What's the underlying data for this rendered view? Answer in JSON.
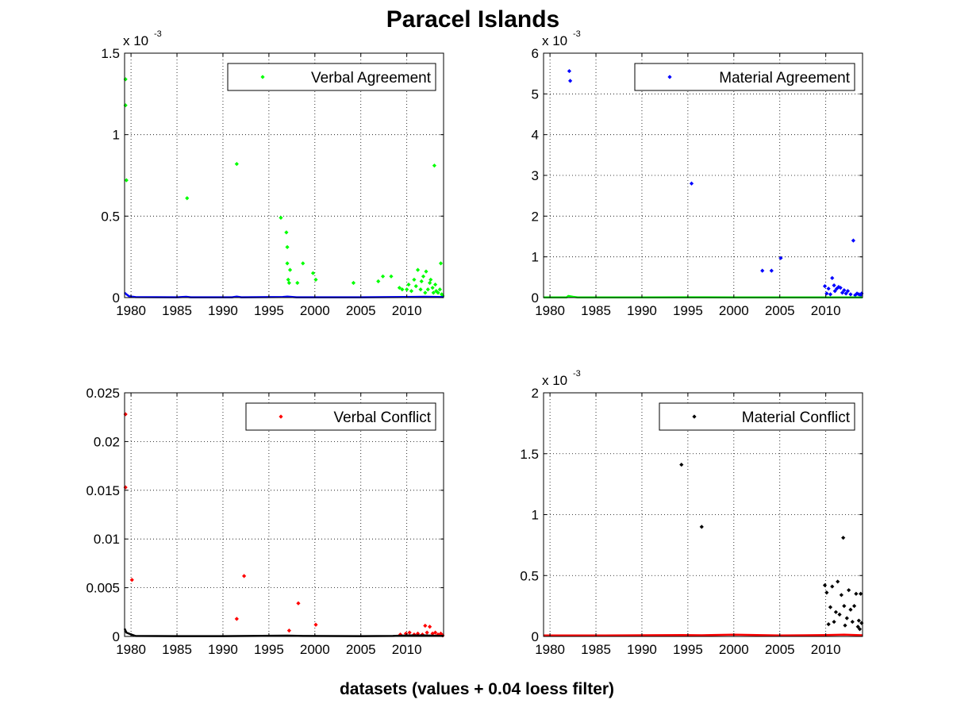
{
  "title": "Paracel Islands",
  "xlabel": "datasets (values + 0.04 loess filter)",
  "colors": {
    "verbal_agreement": "#00ff00",
    "material_agreement": "#0000ff",
    "verbal_conflict": "#ff0000",
    "material_conflict": "#000000"
  },
  "chart_data": [
    {
      "type": "scatter",
      "xlim": [
        1979.3,
        2014.0
      ],
      "ylim": [
        0,
        0.0015
      ],
      "xticks": [
        1980,
        1985,
        1990,
        1995,
        2000,
        2005,
        2010
      ],
      "xtick_labels": [
        "1980",
        "1985",
        "1990",
        "1995",
        "2000",
        "2005",
        "2010"
      ],
      "yticks": [
        0,
        0.0005,
        0.001,
        0.0015
      ],
      "ytick_labels": [
        "0",
        "0.5",
        "1",
        "1.5"
      ],
      "exponent_label": {
        "base": "x 10",
        "power": "-3"
      },
      "grid": true,
      "legend": {
        "position": "top-right",
        "entry": "Verbal Agreement"
      },
      "series": [
        {
          "name": "Verbal Agreement",
          "color": "#00ff00",
          "style": "points",
          "x": [
            1979.4,
            1979.4,
            1979.5,
            1986.1,
            1991.5,
            1996.3,
            1996.9,
            1997.0,
            1997.0,
            1997.1,
            1997.2,
            1997.3,
            1998.1,
            1998.7,
            1999.8,
            2000.1,
            2004.2,
            2006.9,
            2007.4,
            2008.3,
            2009.2,
            2009.5,
            2010.0,
            2010.2,
            2010.5,
            2010.8,
            2011.0,
            2011.2,
            2011.5,
            2011.6,
            2011.8,
            2012.0,
            2012.1,
            2012.3,
            2012.5,
            2012.6,
            2012.8,
            2012.9,
            2013.0,
            2013.1,
            2013.2,
            2013.4,
            2013.6,
            2013.7,
            2013.8,
            2013.9
          ],
          "y": [
            0.00134,
            0.00118,
            0.00072,
            0.00061,
            0.00082,
            0.00049,
            0.0004,
            0.00031,
            0.00021,
            0.00011,
            9e-05,
            0.00017,
            9e-05,
            0.00021,
            0.00015,
            0.00011,
            9e-05,
            0.0001,
            0.00013,
            0.00013,
            6e-05,
            5e-05,
            5e-05,
            8e-05,
            4e-05,
            0.00011,
            7e-05,
            0.00017,
            5e-05,
            0.0001,
            0.00013,
            3e-05,
            0.00016,
            5e-05,
            9e-05,
            0.00011,
            6e-05,
            3e-05,
            0.00081,
            8e-05,
            4e-05,
            3e-05,
            5e-05,
            0.00021,
            2e-05,
            1e-05
          ]
        },
        {
          "name": "",
          "color": "#0000ff",
          "style": "baseline",
          "x": [
            1979.3,
            1979.5,
            1979.8,
            1980.5,
            1985.0,
            1986.0,
            1986.5,
            1991.0,
            1991.5,
            1992.0,
            1996.5,
            1997.0,
            1998.0,
            2005.0,
            2008.0,
            2010.0,
            2012.0,
            2014.0
          ],
          "y": [
            3e-05,
            2e-05,
            8e-06,
            3e-06,
            2e-06,
            5e-06,
            2e-06,
            2e-06,
            6e-06,
            2e-06,
            4e-06,
            6e-06,
            2e-06,
            2e-06,
            3e-06,
            4e-06,
            5e-06,
            3e-06
          ]
        }
      ]
    },
    {
      "type": "scatter",
      "xlim": [
        1979.3,
        2014.0
      ],
      "ylim": [
        0,
        0.006
      ],
      "xticks": [
        1980,
        1985,
        1990,
        1995,
        2000,
        2005,
        2010
      ],
      "xtick_labels": [
        "1980",
        "1985",
        "1990",
        "1995",
        "2000",
        "2005",
        "2010"
      ],
      "yticks": [
        0,
        0.001,
        0.002,
        0.003,
        0.004,
        0.005,
        0.006
      ],
      "ytick_labels": [
        "0",
        "1",
        "2",
        "3",
        "4",
        "5",
        "6"
      ],
      "exponent_label": {
        "base": "x 10",
        "power": "-3"
      },
      "grid": true,
      "legend": {
        "position": "top-right",
        "entry": "Material Agreement"
      },
      "series": [
        {
          "name": "Material Agreement",
          "color": "#0000ff",
          "style": "points",
          "x": [
            1982.1,
            1982.2,
            1995.4,
            2003.1,
            2004.1,
            2005.1,
            2009.9,
            2010.1,
            2010.3,
            2010.5,
            2010.7,
            2010.9,
            2011.0,
            2011.2,
            2011.4,
            2011.6,
            2011.8,
            2012.0,
            2012.2,
            2012.4,
            2012.7,
            2013.0,
            2013.2,
            2013.4,
            2013.6,
            2013.8,
            2013.9
          ],
          "y": [
            0.00556,
            0.00532,
            0.0028,
            0.00066,
            0.00066,
            0.00097,
            0.00028,
            0.0001,
            0.00022,
            8e-05,
            0.00048,
            0.0003,
            0.00016,
            0.00022,
            0.00026,
            0.00024,
            0.00012,
            0.00018,
            0.0001,
            0.00016,
            8e-05,
            0.0014,
            6e-05,
            0.0001,
            8e-05,
            6e-05,
            0.0001
          ]
        },
        {
          "name": "",
          "color": "#00ff00",
          "style": "baseline",
          "x": [
            1979.3,
            1981.8,
            1982.0,
            1982.5,
            1983.0,
            1990.0,
            1995.5,
            2000.0,
            2010.0,
            2014.0
          ],
          "y": [
            5e-06,
            5e-06,
            4e-05,
            2e-05,
            5e-06,
            5e-06,
            8e-06,
            5e-06,
            6e-06,
            5e-06
          ]
        }
      ]
    },
    {
      "type": "scatter",
      "xlim": [
        1979.3,
        2014.0
      ],
      "ylim": [
        0,
        0.025
      ],
      "xticks": [
        1980,
        1985,
        1990,
        1995,
        2000,
        2005,
        2010
      ],
      "xtick_labels": [
        "1980",
        "1985",
        "1990",
        "1995",
        "2000",
        "2005",
        "2010"
      ],
      "yticks": [
        0,
        0.005,
        0.01,
        0.015,
        0.02,
        0.025
      ],
      "ytick_labels": [
        "0",
        "0.005",
        "0.01",
        "0.015",
        "0.02",
        "0.025"
      ],
      "grid": true,
      "legend": {
        "position": "top-right",
        "entry": "Verbal Conflict"
      },
      "series": [
        {
          "name": "Verbal Conflict",
          "color": "#ff0000",
          "style": "points",
          "x": [
            1979.4,
            1979.4,
            1980.1,
            1991.5,
            1992.3,
            1997.2,
            1998.2,
            2000.1,
            2009.3,
            2009.9,
            2010.3,
            2010.8,
            2011.2,
            2011.7,
            2012.0,
            2012.2,
            2012.5,
            2012.8,
            2013.1,
            2013.4,
            2013.7,
            2013.9
          ],
          "y": [
            0.0228,
            0.0153,
            0.0058,
            0.0018,
            0.0062,
            0.0006,
            0.0034,
            0.0012,
            0.0002,
            0.0003,
            0.0004,
            0.0002,
            0.0003,
            0.0002,
            0.0011,
            0.0004,
            0.001,
            0.0003,
            0.0004,
            0.0002,
            0.0003,
            0.0001
          ]
        },
        {
          "name": "",
          "color": "#000000",
          "style": "baseline",
          "x": [
            1979.3,
            1979.5,
            1980.0,
            1980.5,
            1985.0,
            1990.0,
            1997.0,
            1999.0,
            2005.0,
            2008.5,
            2010.0,
            2012.0,
            2014.0
          ],
          "y": [
            0.0008,
            0.0004,
            0.0002,
            5e-05,
            3e-05,
            3e-05,
            8e-05,
            5e-05,
            3e-05,
            5e-05,
            0.0001,
            0.0001,
            5e-05
          ]
        }
      ]
    },
    {
      "type": "scatter",
      "xlim": [
        1979.3,
        2014.0
      ],
      "ylim": [
        0,
        0.002
      ],
      "xticks": [
        1980,
        1985,
        1990,
        1995,
        2000,
        2005,
        2010
      ],
      "xtick_labels": [
        "1980",
        "1985",
        "1990",
        "1995",
        "2000",
        "2005",
        "2010"
      ],
      "yticks": [
        0,
        0.0005,
        0.001,
        0.0015,
        0.002
      ],
      "ytick_labels": [
        "0",
        "0.5",
        "1",
        "1.5",
        "2"
      ],
      "exponent_label": {
        "base": "x 10",
        "power": "-3"
      },
      "grid": true,
      "legend": {
        "position": "top-right",
        "entry": "Material Conflict"
      },
      "series": [
        {
          "name": "Material Conflict",
          "color": "#000000",
          "style": "points",
          "x": [
            1994.3,
            1996.5,
            2009.9,
            2010.1,
            2010.3,
            2010.5,
            2010.7,
            2010.9,
            2011.1,
            2011.3,
            2011.5,
            2011.7,
            2011.9,
            2012.0,
            2012.1,
            2012.3,
            2012.5,
            2012.7,
            2012.9,
            2013.1,
            2013.3,
            2013.5,
            2013.6,
            2013.7,
            2013.8,
            2013.9
          ],
          "y": [
            0.00141,
            0.0009,
            0.00042,
            0.00036,
            0.0001,
            0.00024,
            0.00041,
            0.00012,
            0.0002,
            0.00045,
            0.00018,
            0.00034,
            0.00081,
            0.00025,
            9e-05,
            0.00015,
            0.00038,
            0.00022,
            0.00012,
            0.00025,
            0.00035,
            8e-05,
            0.00013,
            6e-05,
            0.00035,
            0.00011
          ]
        },
        {
          "name": "",
          "color": "#ff0000",
          "style": "baseline",
          "x": [
            1979.3,
            1985.0,
            1994.3,
            1996.5,
            2000.0,
            2005.0,
            2010.0,
            2012.0,
            2014.0
          ],
          "y": [
            8e-06,
            8e-06,
            1.2e-05,
            1e-05,
            1.5e-05,
            8e-06,
            1.2e-05,
            1.5e-05,
            1e-05
          ]
        }
      ]
    }
  ]
}
